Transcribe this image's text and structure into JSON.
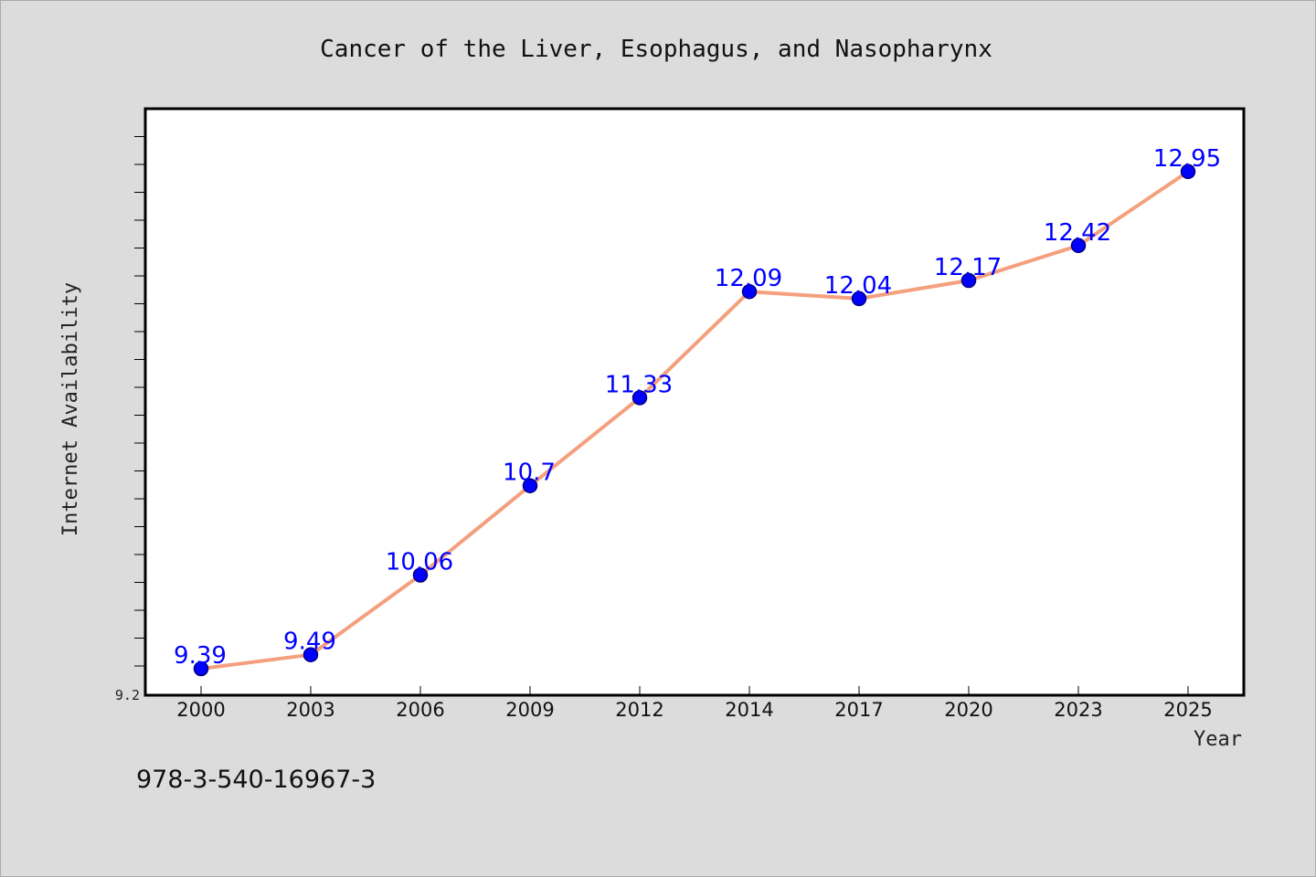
{
  "chart_data": {
    "type": "line",
    "title": "Cancer of the Liver, Esophagus, and Nasopharynx",
    "xlabel": "Year",
    "ylabel": "Internet Availability",
    "categories": [
      "2000",
      "2003",
      "2006",
      "2009",
      "2012",
      "2014",
      "2017",
      "2020",
      "2023",
      "2025"
    ],
    "values": [
      9.39,
      9.49,
      10.06,
      10.7,
      11.33,
      12.09,
      12.04,
      12.17,
      12.42,
      12.95
    ],
    "data_labels": [
      "9.39",
      "9.49",
      "10.06",
      "10.7",
      "11.33",
      "12.09",
      "12.04",
      "12.17",
      "12.42",
      "12.95"
    ],
    "ylim": [
      9.2,
      13.4
    ],
    "y_tick_label": "9.2",
    "grid": false,
    "colors": {
      "line": "#f4a07e",
      "marker": "#0000ff",
      "marker_edge": "#000080",
      "data_label": "#0000ff",
      "plot_bg": "#ffffff",
      "page_bg": "#dcdcdc"
    }
  },
  "footer": {
    "isbn": "978-3-540-16967-3"
  }
}
